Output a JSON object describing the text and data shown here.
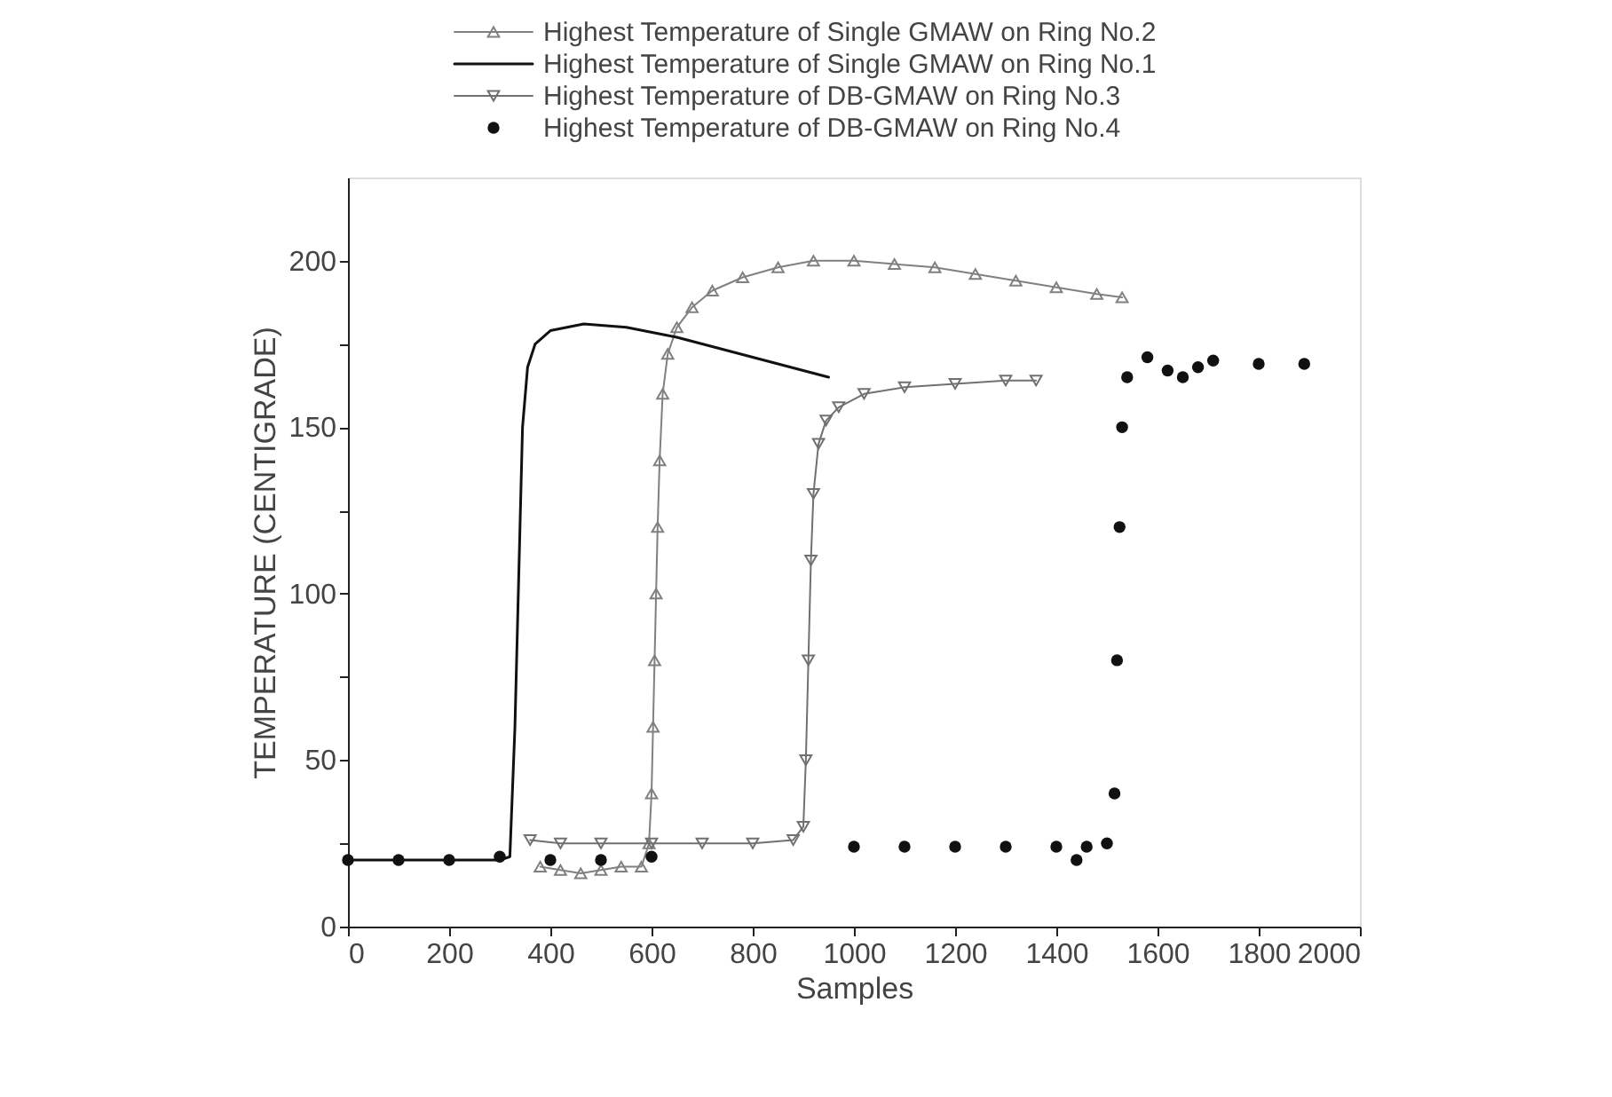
{
  "chart_data": {
    "type": "line",
    "xlabel": "Samples",
    "ylabel": "TEMPERATURE (CENTIGRADE)",
    "xlim": [
      0,
      2000
    ],
    "ylim": [
      0,
      225
    ],
    "xticks": [
      0,
      200,
      400,
      600,
      800,
      1000,
      1200,
      1400,
      1600,
      1800,
      2000
    ],
    "yticks": [
      0,
      {
        "value": 25,
        "label": null
      },
      50,
      {
        "value": 75,
        "label": null
      },
      100,
      {
        "value": 125,
        "label": null
      },
      150,
      {
        "value": 175,
        "label": null
      },
      200
    ],
    "grid": false,
    "legend": "top",
    "line_style": "solid",
    "series": [
      {
        "name": "Highest Temperature of Single GMAW on Ring No.2",
        "marker": "triangle",
        "color": "#808080",
        "x": [
          380,
          420,
          460,
          500,
          540,
          580,
          595,
          600,
          603,
          606,
          609,
          612,
          616,
          622,
          632,
          650,
          680,
          720,
          780,
          850,
          920,
          1000,
          1080,
          1160,
          1240,
          1320,
          1400,
          1480,
          1530
        ],
        "values": [
          18,
          17,
          16,
          17,
          18,
          18,
          25,
          40,
          60,
          80,
          100,
          120,
          140,
          160,
          172,
          180,
          186,
          191,
          195,
          198,
          200,
          200,
          199,
          198,
          196,
          194,
          192,
          190,
          189
        ]
      },
      {
        "name": "Highest Temperature of Single GMAW on Ring No.1",
        "marker": "none",
        "color": "#111111",
        "x": [
          0,
          100,
          200,
          300,
          320,
          330,
          340,
          345,
          355,
          370,
          400,
          466,
          550,
          650,
          750,
          850,
          950
        ],
        "values": [
          20,
          20,
          20,
          20,
          21,
          60,
          120,
          150,
          168,
          175,
          179,
          181,
          180,
          177,
          173,
          169,
          165
        ]
      },
      {
        "name": "Highest Temperature of DB-GMAW on Ring No.3",
        "marker": "triangle-down",
        "color": "#707070",
        "x": [
          360,
          420,
          500,
          600,
          700,
          800,
          880,
          900,
          905,
          910,
          915,
          920,
          930,
          945,
          970,
          1020,
          1100,
          1200,
          1300,
          1360
        ],
        "values": [
          26,
          25,
          25,
          25,
          25,
          25,
          26,
          30,
          50,
          80,
          110,
          130,
          145,
          152,
          156,
          160,
          162,
          163,
          164,
          164
        ]
      },
      {
        "name": "Highest Temperature of DB-GMAW on Ring No.4",
        "type": "scatter",
        "marker": "circle",
        "color": "#111111",
        "x": [
          0,
          100,
          200,
          300,
          400,
          500,
          600,
          1000,
          1100,
          1200,
          1300,
          1400,
          1440,
          1460,
          1500,
          1515,
          1520,
          1525,
          1530,
          1540,
          1580,
          1620,
          1650,
          1680,
          1710,
          1800,
          1890
        ],
        "values": [
          20,
          20,
          20,
          21,
          20,
          20,
          21,
          24,
          24,
          24,
          24,
          24,
          20,
          24,
          25,
          40,
          80,
          120,
          150,
          165,
          171,
          167,
          165,
          168,
          170,
          169,
          169
        ]
      }
    ]
  }
}
